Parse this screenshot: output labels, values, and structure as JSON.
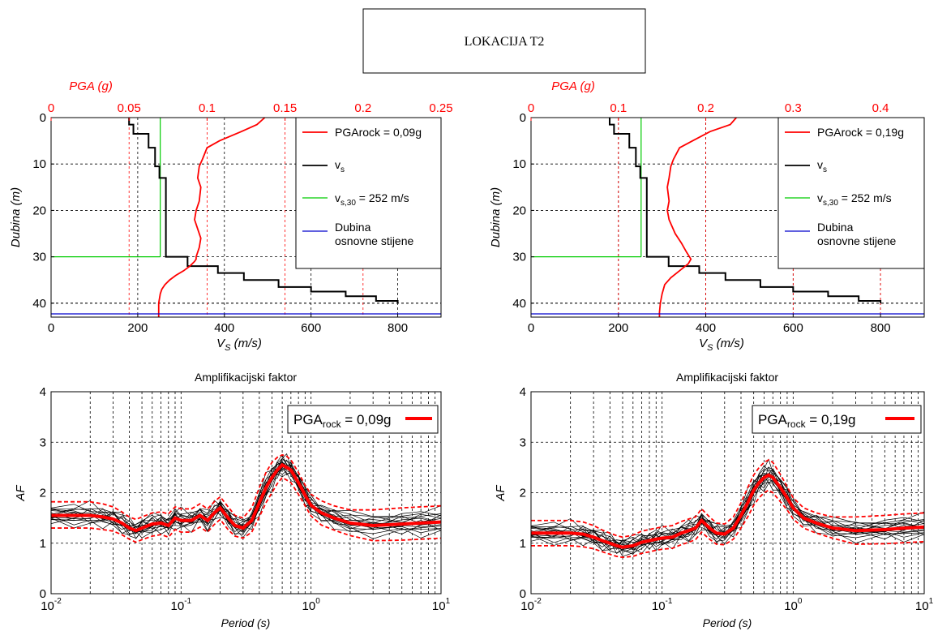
{
  "title_box": {
    "text": "LOKACIJA T2"
  },
  "chart_data": [
    {
      "id": "profile_left",
      "type": "line",
      "top_axis": {
        "label": "PGA (g)",
        "range": [
          0,
          0.25
        ],
        "ticks": [
          0,
          0.05,
          0.1,
          0.15,
          0.2,
          0.25
        ],
        "tick_labels": [
          "0",
          "0.05",
          "0.1",
          "0.15",
          "0.2",
          "0.25"
        ],
        "color": "#ff0000"
      },
      "xlabel": "V",
      "xlabel_sub": "S",
      "xlabel_unit": " (m/s)",
      "xlim": [
        0,
        900
      ],
      "xticks": [
        0,
        200,
        400,
        600,
        800
      ],
      "xtick_labels": [
        "0",
        "200",
        "400",
        "600",
        "800"
      ],
      "ylabel": "Dubina (m)",
      "ylim": [
        0,
        43
      ],
      "yticks": [
        0,
        10,
        20,
        30,
        40
      ],
      "ytick_labels": [
        "0",
        "10",
        "20",
        "30",
        "40"
      ],
      "grid": true,
      "legend": {
        "position": "top-right",
        "entries": [
          {
            "label": "PGArock = 0,09g",
            "color": "#ff0000"
          },
          {
            "label": "v",
            "sub": "s",
            "color": "#000000"
          },
          {
            "label": "v",
            "sub": "s,30",
            "suffix": " = 252 m/s",
            "color": "#00cc00"
          },
          {
            "label": "Dubina",
            "label2": "osnovne stijene",
            "color": "#0000cc"
          }
        ]
      },
      "vs_profile": {
        "vs": [
          180,
          180,
          190,
          190,
          225,
          225,
          240,
          240,
          250,
          250,
          265,
          265,
          315,
          315,
          385,
          385,
          445,
          445,
          525,
          525,
          600,
          600,
          680,
          680,
          750,
          750,
          800,
          800
        ],
        "depth": [
          0,
          1.5,
          1.5,
          3.5,
          3.5,
          6.5,
          6.5,
          10.5,
          10.5,
          13,
          13,
          30,
          30,
          32,
          32,
          33.5,
          33.5,
          35,
          35,
          36.5,
          36.5,
          37.5,
          37.5,
          38.5,
          38.5,
          39.5,
          39.5,
          40
        ]
      },
      "pga_profile": {
        "pga": [
          0.137,
          0.132,
          0.122,
          0.108,
          0.1,
          0.097,
          0.095,
          0.094,
          0.096,
          0.095,
          0.093,
          0.092,
          0.094,
          0.096,
          0.095,
          0.093,
          0.093,
          0.092,
          0.089,
          0.085,
          0.08,
          0.076,
          0.073,
          0.071,
          0.07,
          0.069,
          0.069
        ],
        "depth": [
          0,
          1.5,
          3,
          5,
          6.5,
          9,
          10.5,
          13,
          15,
          18,
          20,
          22,
          24,
          26,
          28,
          30,
          30.5,
          31,
          32,
          33,
          34,
          35,
          36,
          37,
          38,
          40,
          43
        ]
      },
      "vs30": {
        "value": 252,
        "depth": 30
      },
      "bedrock_depth": 42.3,
      "red_vlines_vs": [
        180,
        360,
        540,
        720
      ]
    },
    {
      "id": "profile_right",
      "type": "line",
      "top_axis": {
        "label": "PGA (g)",
        "range": [
          0,
          0.45
        ],
        "ticks": [
          0,
          0.1,
          0.2,
          0.3,
          0.4
        ],
        "tick_labels": [
          "0",
          "0.1",
          "0.2",
          "0.3",
          "0.4"
        ],
        "color": "#ff0000"
      },
      "xlabel": "V",
      "xlabel_sub": "S",
      "xlabel_unit": " (m/s)",
      "xlim": [
        0,
        900
      ],
      "xticks": [
        0,
        200,
        400,
        600,
        800
      ],
      "xtick_labels": [
        "0",
        "200",
        "400",
        "600",
        "800"
      ],
      "ylabel": "Dubina (m)",
      "ylim": [
        0,
        43
      ],
      "yticks": [
        0,
        10,
        20,
        30,
        40
      ],
      "ytick_labels": [
        "0",
        "10",
        "20",
        "30",
        "40"
      ],
      "grid": true,
      "legend": {
        "position": "top-right",
        "entries": [
          {
            "label": "PGArock = 0,19g",
            "color": "#ff0000"
          },
          {
            "label": "v",
            "sub": "s",
            "color": "#000000"
          },
          {
            "label": "v",
            "sub": "s,30",
            "suffix": " = 252 m/s",
            "color": "#00cc00"
          },
          {
            "label": "Dubina",
            "label2": "osnovne stijene",
            "color": "#0000cc"
          }
        ]
      },
      "vs_profile": {
        "vs": [
          180,
          180,
          190,
          190,
          225,
          225,
          240,
          240,
          250,
          250,
          265,
          265,
          315,
          315,
          385,
          385,
          445,
          445,
          525,
          525,
          600,
          600,
          680,
          680,
          750,
          750,
          800,
          800
        ],
        "depth": [
          0,
          1.5,
          1.5,
          3.5,
          3.5,
          6.5,
          6.5,
          10.5,
          10.5,
          13,
          13,
          30,
          30,
          32,
          32,
          33.5,
          33.5,
          35,
          35,
          36.5,
          36.5,
          37.5,
          37.5,
          38.5,
          38.5,
          39.5,
          39.5,
          40
        ]
      },
      "pga_profile": {
        "pga": [
          0.235,
          0.228,
          0.205,
          0.185,
          0.17,
          0.163,
          0.16,
          0.158,
          0.156,
          0.158,
          0.156,
          0.158,
          0.165,
          0.172,
          0.178,
          0.183,
          0.18,
          0.17,
          0.16,
          0.153,
          0.15,
          0.148,
          0.147,
          0.147
        ],
        "depth": [
          0,
          1.5,
          3,
          5,
          6.5,
          9,
          10.5,
          13,
          15,
          18,
          20,
          22,
          25,
          27,
          29,
          30.5,
          31.5,
          33,
          34.5,
          36,
          38,
          40,
          42,
          43
        ]
      },
      "vs30": {
        "value": 252,
        "depth": 30
      },
      "bedrock_depth": 42.3,
      "red_vlines_vs": [
        200,
        400,
        600,
        800
      ]
    },
    {
      "id": "af_left",
      "type": "line",
      "title": "Amplifikacijski faktor",
      "xlabel": "Period (s)",
      "xscale": "log",
      "xlim": [
        0.01,
        10
      ],
      "xticks": [
        0.01,
        0.1,
        1,
        10
      ],
      "xtick_base": "10",
      "xtick_exps": [
        "-2",
        "-1",
        "0",
        "1"
      ],
      "ylabel": "AF",
      "ylim": [
        0,
        4
      ],
      "yticks": [
        0,
        1,
        2,
        3,
        4
      ],
      "ytick_labels": [
        "0",
        "1",
        "2",
        "3",
        "4"
      ],
      "grid": true,
      "legend": {
        "position": "top-right",
        "label": "PGA",
        "sub": "rock",
        "suffix": " = 0,09g",
        "color": "#ff0000"
      },
      "period": [
        0.01,
        0.015,
        0.02,
        0.025,
        0.03,
        0.035,
        0.04,
        0.045,
        0.05,
        0.06,
        0.07,
        0.08,
        0.09,
        0.1,
        0.12,
        0.14,
        0.16,
        0.18,
        0.2,
        0.23,
        0.26,
        0.3,
        0.35,
        0.4,
        0.45,
        0.5,
        0.55,
        0.6,
        0.65,
        0.7,
        0.8,
        0.9,
        1.0,
        1.2,
        1.5,
        2.0,
        3.0,
        5.0,
        7.0,
        10.0
      ],
      "mean": [
        1.55,
        1.55,
        1.55,
        1.52,
        1.48,
        1.4,
        1.3,
        1.25,
        1.3,
        1.38,
        1.4,
        1.35,
        1.5,
        1.45,
        1.45,
        1.55,
        1.45,
        1.6,
        1.7,
        1.5,
        1.35,
        1.3,
        1.45,
        1.8,
        2.1,
        2.3,
        2.45,
        2.55,
        2.5,
        2.45,
        2.2,
        1.95,
        1.75,
        1.6,
        1.5,
        1.4,
        1.35,
        1.38,
        1.4,
        1.42
      ],
      "upper": [
        1.82,
        1.82,
        1.82,
        1.78,
        1.72,
        1.62,
        1.52,
        1.47,
        1.52,
        1.6,
        1.62,
        1.58,
        1.72,
        1.68,
        1.68,
        1.78,
        1.68,
        1.82,
        1.92,
        1.72,
        1.55,
        1.5,
        1.7,
        2.1,
        2.4,
        2.6,
        2.7,
        2.75,
        2.72,
        2.65,
        2.4,
        2.15,
        1.97,
        1.84,
        1.74,
        1.66,
        1.66,
        1.7,
        1.72,
        1.74
      ],
      "lower": [
        1.3,
        1.3,
        1.3,
        1.27,
        1.24,
        1.17,
        1.08,
        1.02,
        1.07,
        1.14,
        1.17,
        1.12,
        1.27,
        1.22,
        1.22,
        1.32,
        1.22,
        1.37,
        1.47,
        1.27,
        1.14,
        1.1,
        1.22,
        1.52,
        1.8,
        2.0,
        2.18,
        2.3,
        2.25,
        2.2,
        1.97,
        1.74,
        1.54,
        1.36,
        1.26,
        1.15,
        1.05,
        1.06,
        1.08,
        1.1
      ],
      "curve_offsets": [
        -0.3,
        -0.22,
        -0.15,
        -0.1,
        -0.05,
        0,
        0.05,
        0.1,
        0.15,
        0.2,
        0.25,
        0.32,
        -0.35,
        0.4,
        0.08,
        -0.12
      ]
    },
    {
      "id": "af_right",
      "type": "line",
      "title": "Amplifikacijski faktor",
      "xlabel": "Period (s)",
      "xscale": "log",
      "xlim": [
        0.01,
        10
      ],
      "xticks": [
        0.01,
        0.1,
        1,
        10
      ],
      "xtick_base": "10",
      "xtick_exps": [
        "-2",
        "-1",
        "0",
        "1"
      ],
      "ylabel": "AF",
      "ylim": [
        0,
        4
      ],
      "yticks": [
        0,
        1,
        2,
        3,
        4
      ],
      "ytick_labels": [
        "0",
        "1",
        "2",
        "3",
        "4"
      ],
      "grid": true,
      "legend": {
        "position": "top-right",
        "label": "PGA",
        "sub": "rock",
        "suffix": " = 0,19g",
        "color": "#ff0000"
      },
      "period": [
        0.01,
        0.015,
        0.02,
        0.025,
        0.03,
        0.035,
        0.04,
        0.045,
        0.05,
        0.06,
        0.07,
        0.08,
        0.09,
        0.1,
        0.12,
        0.14,
        0.16,
        0.18,
        0.2,
        0.23,
        0.26,
        0.3,
        0.35,
        0.4,
        0.45,
        0.5,
        0.55,
        0.6,
        0.65,
        0.7,
        0.8,
        0.9,
        1.0,
        1.2,
        1.5,
        2.0,
        3.0,
        5.0,
        7.0,
        10.0
      ],
      "mean": [
        1.2,
        1.2,
        1.2,
        1.18,
        1.12,
        1.05,
        1.0,
        0.95,
        0.92,
        0.95,
        1.02,
        1.05,
        1.08,
        1.1,
        1.12,
        1.2,
        1.25,
        1.3,
        1.45,
        1.3,
        1.2,
        1.18,
        1.3,
        1.55,
        1.8,
        2.05,
        2.2,
        2.3,
        2.35,
        2.3,
        2.1,
        1.9,
        1.7,
        1.5,
        1.4,
        1.3,
        1.25,
        1.27,
        1.3,
        1.32
      ],
      "upper": [
        1.45,
        1.45,
        1.45,
        1.42,
        1.35,
        1.26,
        1.2,
        1.15,
        1.12,
        1.16,
        1.24,
        1.27,
        1.3,
        1.32,
        1.35,
        1.43,
        1.48,
        1.52,
        1.68,
        1.52,
        1.4,
        1.38,
        1.52,
        1.8,
        2.1,
        2.35,
        2.5,
        2.6,
        2.65,
        2.6,
        2.36,
        2.12,
        1.9,
        1.7,
        1.6,
        1.52,
        1.52,
        1.55,
        1.58,
        1.6
      ],
      "lower": [
        0.95,
        0.95,
        0.95,
        0.93,
        0.89,
        0.83,
        0.78,
        0.74,
        0.72,
        0.74,
        0.8,
        0.83,
        0.86,
        0.88,
        0.9,
        0.97,
        1.02,
        1.07,
        1.22,
        1.08,
        0.98,
        0.97,
        1.08,
        1.3,
        1.52,
        1.75,
        1.9,
        2.0,
        2.05,
        2.0,
        1.82,
        1.66,
        1.48,
        1.3,
        1.2,
        1.1,
        0.98,
        0.99,
        1.01,
        1.03
      ],
      "curve_offsets": [
        -0.3,
        -0.22,
        -0.15,
        -0.1,
        -0.05,
        0,
        0.05,
        0.1,
        0.15,
        0.2,
        0.25,
        0.32,
        -0.35,
        0.4,
        0.08,
        -0.12
      ]
    }
  ]
}
